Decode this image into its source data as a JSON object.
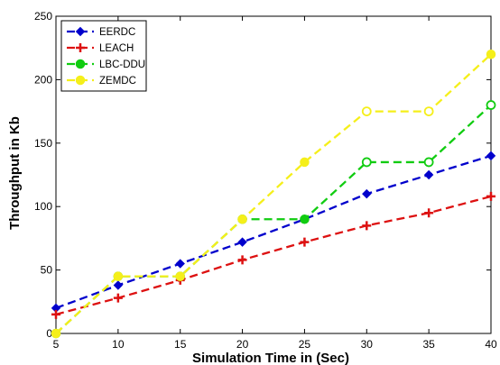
{
  "chart_data": {
    "type": "line",
    "title": "",
    "xlabel": "Simulation Time in  (Sec)",
    "ylabel": "Throughput in Kb",
    "xlim": [
      5,
      40
    ],
    "ylim": [
      0,
      250
    ],
    "xticks": [
      5,
      10,
      15,
      20,
      25,
      30,
      35,
      40
    ],
    "yticks": [
      0,
      50,
      100,
      150,
      200,
      250
    ],
    "grid": false,
    "legend_position": "top-left",
    "x": [
      5,
      10,
      15,
      20,
      25,
      30,
      35,
      40
    ],
    "series": [
      {
        "name": "EERDC",
        "color": "#0000cc",
        "marker": "diamond",
        "values": [
          20,
          38,
          55,
          72,
          90,
          110,
          125,
          140
        ]
      },
      {
        "name": "LEACH",
        "color": "#dd1111",
        "marker": "plus",
        "values": [
          15,
          28,
          42,
          58,
          72,
          85,
          95,
          108
        ]
      },
      {
        "name": "LBC-DDU",
        "color": "#11cc11",
        "marker": "circle",
        "values": [
          0,
          45,
          45,
          90,
          90,
          135,
          135,
          180
        ]
      },
      {
        "name": "ZEMDC",
        "color": "#f5ef1a",
        "marker": "circle",
        "values": [
          0,
          45,
          45,
          90,
          135,
          175,
          175,
          220
        ]
      }
    ]
  }
}
